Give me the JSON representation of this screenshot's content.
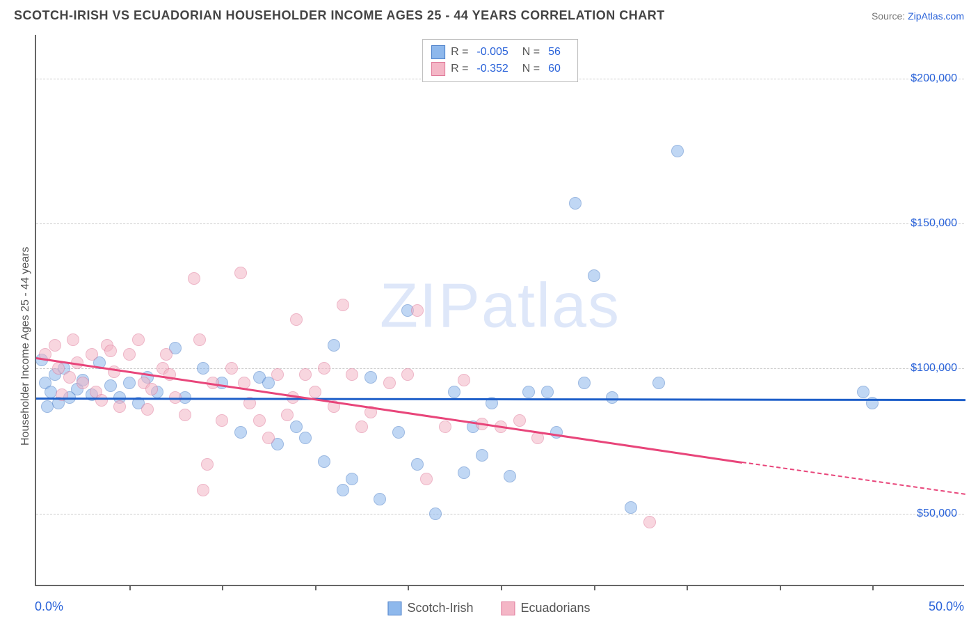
{
  "title": "SCOTCH-IRISH VS ECUADORIAN HOUSEHOLDER INCOME AGES 25 - 44 YEARS CORRELATION CHART",
  "source_prefix": "Source: ",
  "source_link": "ZipAtlas.com",
  "y_axis_label": "Householder Income Ages 25 - 44 years",
  "watermark": "ZIPatlas",
  "chart": {
    "type": "scatter",
    "xlim": [
      0,
      50
    ],
    "ylim": [
      25000,
      215000
    ],
    "x_min_label": "0.0%",
    "x_max_label": "50.0%",
    "y_ticks": [
      50000,
      100000,
      150000,
      200000
    ],
    "y_tick_labels": [
      "$50,000",
      "$100,000",
      "$150,000",
      "$200,000"
    ],
    "x_ticks": [
      5,
      10,
      15,
      20,
      25,
      30,
      35,
      40,
      45
    ],
    "grid_color": "#cccccc",
    "background_color": "#ffffff",
    "marker_radius": 9,
    "marker_opacity": 0.55,
    "series": [
      {
        "name": "Scotch-Irish",
        "fill": "#8eb8ec",
        "stroke": "#4a7fc9",
        "trend_color": "#1e5fc9",
        "R": "-0.005",
        "N": "56",
        "trend": {
          "x1": 0,
          "y1": 90000,
          "x2": 50,
          "y2": 89500
        },
        "points": [
          {
            "x": 0.5,
            "y": 95000
          },
          {
            "x": 0.8,
            "y": 92000
          },
          {
            "x": 1.0,
            "y": 98000
          },
          {
            "x": 1.2,
            "y": 88000
          },
          {
            "x": 1.5,
            "y": 100000
          },
          {
            "x": 1.8,
            "y": 90000
          },
          {
            "x": 2.2,
            "y": 93000
          },
          {
            "x": 2.5,
            "y": 96000
          },
          {
            "x": 3.0,
            "y": 91000
          },
          {
            "x": 3.4,
            "y": 102000
          },
          {
            "x": 4.0,
            "y": 94000
          },
          {
            "x": 4.5,
            "y": 90000
          },
          {
            "x": 5.0,
            "y": 95000
          },
          {
            "x": 5.5,
            "y": 88000
          },
          {
            "x": 6.0,
            "y": 97000
          },
          {
            "x": 6.5,
            "y": 92000
          },
          {
            "x": 7.5,
            "y": 107000
          },
          {
            "x": 8.0,
            "y": 90000
          },
          {
            "x": 9.0,
            "y": 100000
          },
          {
            "x": 10.0,
            "y": 95000
          },
          {
            "x": 11.0,
            "y": 78000
          },
          {
            "x": 12.0,
            "y": 97000
          },
          {
            "x": 12.5,
            "y": 95000
          },
          {
            "x": 13.0,
            "y": 74000
          },
          {
            "x": 14.0,
            "y": 80000
          },
          {
            "x": 14.5,
            "y": 76000
          },
          {
            "x": 15.5,
            "y": 68000
          },
          {
            "x": 16.0,
            "y": 108000
          },
          {
            "x": 16.5,
            "y": 58000
          },
          {
            "x": 17.0,
            "y": 62000
          },
          {
            "x": 18.0,
            "y": 97000
          },
          {
            "x": 18.5,
            "y": 55000
          },
          {
            "x": 19.5,
            "y": 78000
          },
          {
            "x": 20.0,
            "y": 120000
          },
          {
            "x": 20.5,
            "y": 67000
          },
          {
            "x": 21.5,
            "y": 50000
          },
          {
            "x": 22.5,
            "y": 92000
          },
          {
            "x": 23.0,
            "y": 64000
          },
          {
            "x": 23.5,
            "y": 80000
          },
          {
            "x": 24.0,
            "y": 70000
          },
          {
            "x": 24.5,
            "y": 88000
          },
          {
            "x": 25.5,
            "y": 63000
          },
          {
            "x": 26.5,
            "y": 92000
          },
          {
            "x": 27.5,
            "y": 92000
          },
          {
            "x": 28.0,
            "y": 78000
          },
          {
            "x": 29.0,
            "y": 157000
          },
          {
            "x": 29.5,
            "y": 95000
          },
          {
            "x": 30.0,
            "y": 132000
          },
          {
            "x": 31.0,
            "y": 90000
          },
          {
            "x": 32.0,
            "y": 52000
          },
          {
            "x": 33.5,
            "y": 95000
          },
          {
            "x": 34.5,
            "y": 175000
          },
          {
            "x": 44.5,
            "y": 92000
          },
          {
            "x": 45.0,
            "y": 88000
          },
          {
            "x": 0.3,
            "y": 103000
          },
          {
            "x": 0.6,
            "y": 87000
          }
        ]
      },
      {
        "name": "Ecuadorians",
        "fill": "#f4b6c6",
        "stroke": "#e07a9a",
        "trend_color": "#e8457a",
        "R": "-0.352",
        "N": "60",
        "trend": {
          "x1": 0,
          "y1": 104000,
          "x2": 38,
          "y2": 68000
        },
        "trend_dash": {
          "x1": 38,
          "y1": 68000,
          "x2": 50,
          "y2": 57000
        },
        "points": [
          {
            "x": 0.5,
            "y": 105000
          },
          {
            "x": 1.0,
            "y": 108000
          },
          {
            "x": 1.2,
            "y": 100000
          },
          {
            "x": 1.8,
            "y": 97000
          },
          {
            "x": 2.0,
            "y": 110000
          },
          {
            "x": 2.5,
            "y": 95000
          },
          {
            "x": 3.0,
            "y": 105000
          },
          {
            "x": 3.2,
            "y": 92000
          },
          {
            "x": 3.8,
            "y": 108000
          },
          {
            "x": 4.2,
            "y": 99000
          },
          {
            "x": 4.5,
            "y": 87000
          },
          {
            "x": 5.0,
            "y": 105000
          },
          {
            "x": 5.5,
            "y": 110000
          },
          {
            "x": 5.8,
            "y": 95000
          },
          {
            "x": 6.2,
            "y": 93000
          },
          {
            "x": 6.8,
            "y": 100000
          },
          {
            "x": 7.0,
            "y": 105000
          },
          {
            "x": 7.5,
            "y": 90000
          },
          {
            "x": 8.0,
            "y": 84000
          },
          {
            "x": 8.5,
            "y": 131000
          },
          {
            "x": 8.8,
            "y": 110000
          },
          {
            "x": 9.2,
            "y": 67000
          },
          {
            "x": 9.5,
            "y": 95000
          },
          {
            "x": 10.0,
            "y": 82000
          },
          {
            "x": 10.5,
            "y": 100000
          },
          {
            "x": 11.0,
            "y": 133000
          },
          {
            "x": 11.5,
            "y": 88000
          },
          {
            "x": 12.0,
            "y": 82000
          },
          {
            "x": 12.5,
            "y": 76000
          },
          {
            "x": 13.0,
            "y": 98000
          },
          {
            "x": 13.5,
            "y": 84000
          },
          {
            "x": 14.0,
            "y": 117000
          },
          {
            "x": 14.5,
            "y": 98000
          },
          {
            "x": 15.0,
            "y": 92000
          },
          {
            "x": 15.5,
            "y": 100000
          },
          {
            "x": 16.0,
            "y": 87000
          },
          {
            "x": 16.5,
            "y": 122000
          },
          {
            "x": 17.0,
            "y": 98000
          },
          {
            "x": 17.5,
            "y": 80000
          },
          {
            "x": 18.0,
            "y": 85000
          },
          {
            "x": 19.0,
            "y": 95000
          },
          {
            "x": 20.0,
            "y": 98000
          },
          {
            "x": 20.5,
            "y": 120000
          },
          {
            "x": 21.0,
            "y": 62000
          },
          {
            "x": 22.0,
            "y": 80000
          },
          {
            "x": 23.0,
            "y": 96000
          },
          {
            "x": 24.0,
            "y": 81000
          },
          {
            "x": 25.0,
            "y": 80000
          },
          {
            "x": 26.0,
            "y": 82000
          },
          {
            "x": 27.0,
            "y": 76000
          },
          {
            "x": 33.0,
            "y": 47000
          },
          {
            "x": 1.4,
            "y": 91000
          },
          {
            "x": 2.2,
            "y": 102000
          },
          {
            "x": 3.5,
            "y": 89000
          },
          {
            "x": 4.0,
            "y": 106000
          },
          {
            "x": 6.0,
            "y": 86000
          },
          {
            "x": 7.2,
            "y": 98000
          },
          {
            "x": 9.0,
            "y": 58000
          },
          {
            "x": 11.2,
            "y": 95000
          },
          {
            "x": 13.8,
            "y": 90000
          }
        ]
      }
    ]
  },
  "legend_bottom": [
    {
      "label": "Scotch-Irish",
      "fill": "#8eb8ec",
      "stroke": "#4a7fc9"
    },
    {
      "label": "Ecuadorians",
      "fill": "#f4b6c6",
      "stroke": "#e07a9a"
    }
  ]
}
